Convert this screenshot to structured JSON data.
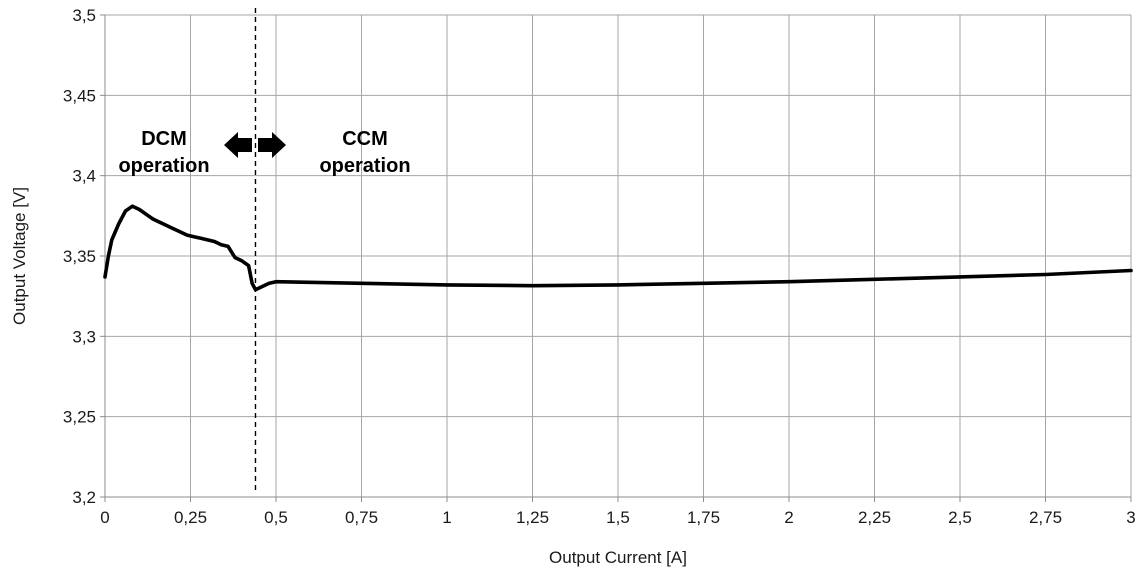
{
  "chart_data": {
    "type": "line",
    "xlabel": "Output Current [A]",
    "ylabel": "Output Voltage [V]",
    "xlim": [
      0,
      3
    ],
    "ylim": [
      3.2,
      3.5
    ],
    "grid": true,
    "x_ticks": [
      0,
      0.25,
      0.5,
      0.75,
      1,
      1.25,
      1.5,
      1.75,
      2,
      2.25,
      2.5,
      2.75,
      3
    ],
    "x_tick_labels": [
      "0",
      "0,25",
      "0,5",
      "0,75",
      "1",
      "1,25",
      "1,5",
      "1,75",
      "2",
      "2,25",
      "2,5",
      "2,75",
      "3"
    ],
    "y_ticks": [
      3.2,
      3.25,
      3.3,
      3.35,
      3.4,
      3.45,
      3.5
    ],
    "y_tick_labels": [
      "3,2",
      "3,25",
      "3,3",
      "3,35",
      "3,4",
      "3,45",
      "3,5"
    ],
    "boundary_x": 0.44,
    "annotations": {
      "dcm_line1": "DCM",
      "dcm_line2": "operation",
      "ccm_line1": "CCM",
      "ccm_line2": "operation"
    },
    "series": [
      {
        "color": "#000000",
        "x": [
          0,
          0.01,
          0.02,
          0.04,
          0.06,
          0.08,
          0.1,
          0.12,
          0.14,
          0.16,
          0.18,
          0.2,
          0.22,
          0.24,
          0.26,
          0.28,
          0.3,
          0.32,
          0.34,
          0.36,
          0.38,
          0.4,
          0.42,
          0.43,
          0.44,
          0.46,
          0.48,
          0.5,
          0.75,
          1.0,
          1.25,
          1.5,
          1.75,
          2.0,
          2.25,
          2.5,
          2.75,
          3.0
        ],
        "y": [
          3.337,
          3.35,
          3.36,
          3.37,
          3.378,
          3.381,
          3.379,
          3.376,
          3.373,
          3.371,
          3.369,
          3.367,
          3.365,
          3.363,
          3.362,
          3.361,
          3.36,
          3.359,
          3.357,
          3.356,
          3.349,
          3.347,
          3.344,
          3.333,
          3.329,
          3.331,
          3.333,
          3.334,
          3.333,
          3.332,
          3.3315,
          3.332,
          3.333,
          3.334,
          3.3355,
          3.337,
          3.3385,
          3.341
        ]
      }
    ]
  }
}
